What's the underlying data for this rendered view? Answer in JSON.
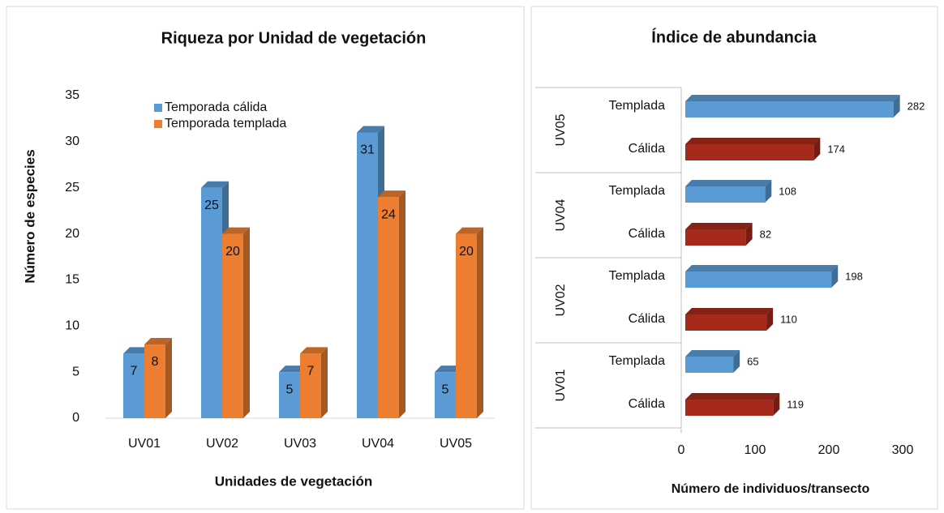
{
  "chart_data": [
    {
      "type": "bar",
      "title": "Riqueza por Unidad de vegetación",
      "categories": [
        "UV01",
        "UV02",
        "UV03",
        "UV04",
        "UV05"
      ],
      "series": [
        {
          "name": "Temporada cálida",
          "color": "#5b9bd5",
          "values": [
            7,
            25,
            5,
            31,
            5
          ]
        },
        {
          "name": "Temporada templada",
          "color": "#ed7d31",
          "values": [
            8,
            20,
            7,
            24,
            20
          ]
        }
      ],
      "ylim": [
        0,
        35
      ],
      "yticks": [
        0,
        5,
        10,
        15,
        20,
        25,
        30,
        35
      ],
      "xlabel": "Unidades de vegetación",
      "ylabel": "Número de especies",
      "legend": "top-left"
    },
    {
      "type": "barh",
      "title": "Índice de abundancia",
      "categories": [
        "UV05",
        "UV04",
        "UV02",
        "UV01"
      ],
      "series": [
        {
          "name": "Templada",
          "color": "#5b9bd5",
          "values": [
            282,
            108,
            198,
            65
          ]
        },
        {
          "name": "Cálida",
          "color": "#a52a1c",
          "values": [
            174,
            82,
            110,
            119
          ]
        }
      ],
      "xlim": [
        0,
        300
      ],
      "xticks": [
        0,
        100,
        200,
        300
      ],
      "xlabel": "Número de individuos/transecto"
    }
  ]
}
